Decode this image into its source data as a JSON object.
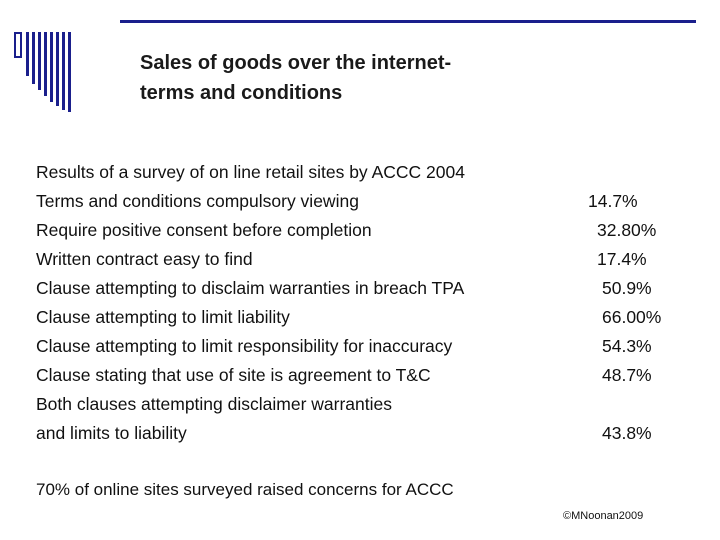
{
  "slide": {
    "title": "Sales of goods over the internet- terms and conditions",
    "title_lines": [
      "Sales of goods over the internet-",
      "terms and conditions"
    ],
    "intro": "Results of a survey of on line retail sites by ACCC 2004",
    "rows": [
      {
        "label_lines": [
          "Terms and conditions compulsory viewing"
        ],
        "value": "14.7%"
      },
      {
        "label_lines": [
          "Require positive consent before completion"
        ],
        "value": "32.80%"
      },
      {
        "label_lines": [
          "Written contract easy to find"
        ],
        "value": "17.4%"
      },
      {
        "label_lines": [
          "Clause attempting to disclaim warranties in breach TPA"
        ],
        "value": "50.9%"
      },
      {
        "label_lines": [
          "Clause attempting to limit liability"
        ],
        "value": "66.00%"
      },
      {
        "label_lines": [
          "Clause attempting to limit responsibility for inaccuracy"
        ],
        "value": "54.3%"
      },
      {
        "label_lines": [
          "Clause stating that use of site is agreement to T&C"
        ],
        "value": "48.7%"
      },
      {
        "label_lines": [
          "Both clauses attempting disclaimer warranties",
          "and limits to liability"
        ],
        "value": "43.8%"
      }
    ],
    "concern": "70% of online sites surveyed raised concerns for ACCC",
    "copyright": "©MNoonan2009",
    "colors": {
      "accent": "#1a1f8c",
      "text": "#111111"
    }
  }
}
